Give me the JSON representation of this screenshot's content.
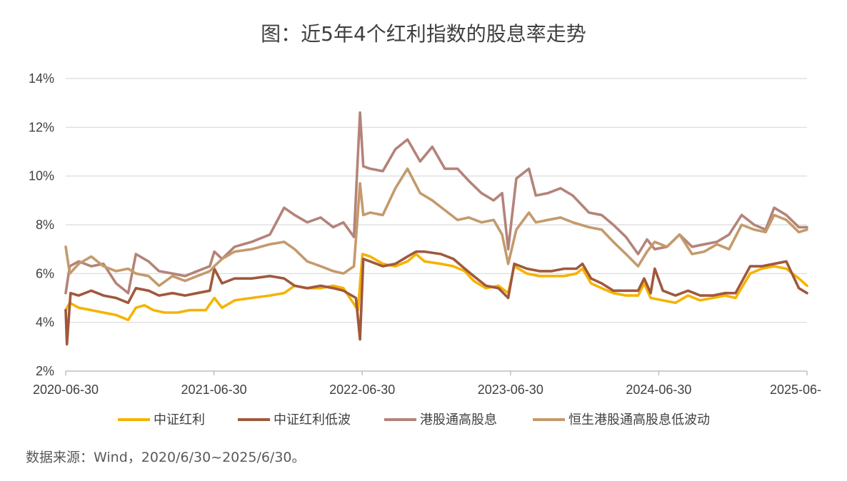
{
  "title": "图：近5年4个红利指数的股息率走势",
  "source": "数据来源：Wind，2020/6/30~2025/6/30。",
  "chart_data": {
    "type": "line",
    "ylim": [
      2,
      14
    ],
    "yticks": [
      2,
      4,
      6,
      8,
      10,
      12,
      14
    ],
    "ytick_labels": [
      "2%",
      "4%",
      "6%",
      "8%",
      "10%",
      "12%",
      "14%"
    ],
    "xlim": [
      "2020-06-30",
      "2025-06-30"
    ],
    "xtick_labels": [
      "2020-06-30",
      "2021-06-30",
      "2022-06-30",
      "2023-06-30",
      "2024-06-30",
      "2025-06-"
    ],
    "grid": "horizontal",
    "legend_position": "bottom",
    "series": [
      {
        "name": "中证红利",
        "color": "#f5b301",
        "points": [
          [
            "2020-06-30",
            4.5
          ],
          [
            "2020-07-10",
            4.8
          ],
          [
            "2020-08-01",
            4.6
          ],
          [
            "2020-09-01",
            4.5
          ],
          [
            "2020-10-01",
            4.4
          ],
          [
            "2020-11-01",
            4.3
          ],
          [
            "2020-12-01",
            4.1
          ],
          [
            "2020-12-20",
            4.6
          ],
          [
            "2021-01-10",
            4.7
          ],
          [
            "2021-02-01",
            4.5
          ],
          [
            "2021-03-01",
            4.4
          ],
          [
            "2021-04-01",
            4.4
          ],
          [
            "2021-05-01",
            4.5
          ],
          [
            "2021-06-10",
            4.5
          ],
          [
            "2021-07-01",
            5.0
          ],
          [
            "2021-07-20",
            4.6
          ],
          [
            "2021-08-20",
            4.9
          ],
          [
            "2021-10-01",
            5.0
          ],
          [
            "2021-11-15",
            5.1
          ],
          [
            "2021-12-20",
            5.2
          ],
          [
            "2022-01-15",
            5.5
          ],
          [
            "2022-02-15",
            5.4
          ],
          [
            "2022-03-20",
            5.4
          ],
          [
            "2022-04-20",
            5.5
          ],
          [
            "2022-05-15",
            5.4
          ],
          [
            "2022-06-20",
            4.5
          ],
          [
            "2022-07-01",
            6.8
          ],
          [
            "2022-07-20",
            6.7
          ],
          [
            "2022-08-20",
            6.4
          ],
          [
            "2022-09-20",
            6.3
          ],
          [
            "2022-10-20",
            6.5
          ],
          [
            "2022-11-10",
            6.8
          ],
          [
            "2022-12-01",
            6.5
          ],
          [
            "2023-01-10",
            6.4
          ],
          [
            "2023-02-10",
            6.3
          ],
          [
            "2023-03-10",
            6.1
          ],
          [
            "2023-04-01",
            5.7
          ],
          [
            "2023-05-01",
            5.4
          ],
          [
            "2023-06-01",
            5.5
          ],
          [
            "2023-06-25",
            5.2
          ],
          [
            "2023-07-10",
            6.3
          ],
          [
            "2023-08-10",
            6.0
          ],
          [
            "2023-09-10",
            5.9
          ],
          [
            "2023-10-10",
            5.9
          ],
          [
            "2023-11-10",
            5.9
          ],
          [
            "2023-12-10",
            6.0
          ],
          [
            "2023-12-25",
            6.2
          ],
          [
            "2024-01-15",
            5.6
          ],
          [
            "2024-02-10",
            5.4
          ],
          [
            "2024-03-10",
            5.2
          ],
          [
            "2024-04-10",
            5.1
          ],
          [
            "2024-05-10",
            5.1
          ],
          [
            "2024-05-25",
            5.6
          ],
          [
            "2024-06-10",
            5.0
          ],
          [
            "2024-07-10",
            4.9
          ],
          [
            "2024-08-10",
            4.8
          ],
          [
            "2024-09-10",
            5.1
          ],
          [
            "2024-10-10",
            4.9
          ],
          [
            "2024-11-10",
            5.0
          ],
          [
            "2024-12-10",
            5.1
          ],
          [
            "2025-01-05",
            5.0
          ],
          [
            "2025-02-10",
            6.0
          ],
          [
            "2025-03-10",
            6.2
          ],
          [
            "2025-04-10",
            6.3
          ],
          [
            "2025-05-10",
            6.2
          ],
          [
            "2025-06-10",
            5.8
          ],
          [
            "2025-06-30",
            5.5
          ]
        ]
      },
      {
        "name": "中证红利低波",
        "color": "#a0583c",
        "points": [
          [
            "2020-06-30",
            4.5
          ],
          [
            "2020-07-03",
            3.1
          ],
          [
            "2020-07-12",
            5.2
          ],
          [
            "2020-08-01",
            5.1
          ],
          [
            "2020-09-01",
            5.3
          ],
          [
            "2020-10-01",
            5.1
          ],
          [
            "2020-11-01",
            5.0
          ],
          [
            "2020-12-01",
            4.8
          ],
          [
            "2020-12-20",
            5.4
          ],
          [
            "2021-01-20",
            5.3
          ],
          [
            "2021-02-15",
            5.1
          ],
          [
            "2021-03-20",
            5.2
          ],
          [
            "2021-04-20",
            5.1
          ],
          [
            "2021-05-20",
            5.2
          ],
          [
            "2021-06-20",
            5.3
          ],
          [
            "2021-07-01",
            6.2
          ],
          [
            "2021-07-20",
            5.6
          ],
          [
            "2021-08-20",
            5.8
          ],
          [
            "2021-10-01",
            5.8
          ],
          [
            "2021-11-15",
            5.9
          ],
          [
            "2021-12-20",
            5.8
          ],
          [
            "2022-01-15",
            5.5
          ],
          [
            "2022-02-15",
            5.4
          ],
          [
            "2022-03-20",
            5.5
          ],
          [
            "2022-04-20",
            5.4
          ],
          [
            "2022-05-15",
            5.3
          ],
          [
            "2022-06-15",
            5.0
          ],
          [
            "2022-06-25",
            3.3
          ],
          [
            "2022-07-03",
            6.6
          ],
          [
            "2022-07-20",
            6.5
          ],
          [
            "2022-08-20",
            6.3
          ],
          [
            "2022-09-20",
            6.4
          ],
          [
            "2022-10-20",
            6.7
          ],
          [
            "2022-11-10",
            6.9
          ],
          [
            "2022-12-01",
            6.9
          ],
          [
            "2023-01-10",
            6.8
          ],
          [
            "2023-02-10",
            6.6
          ],
          [
            "2023-03-10",
            6.2
          ],
          [
            "2023-04-01",
            5.9
          ],
          [
            "2023-05-01",
            5.5
          ],
          [
            "2023-06-01",
            5.4
          ],
          [
            "2023-06-25",
            5.0
          ],
          [
            "2023-07-10",
            6.4
          ],
          [
            "2023-08-10",
            6.2
          ],
          [
            "2023-09-10",
            6.1
          ],
          [
            "2023-10-10",
            6.1
          ],
          [
            "2023-11-10",
            6.2
          ],
          [
            "2023-12-10",
            6.2
          ],
          [
            "2023-12-25",
            6.4
          ],
          [
            "2024-01-15",
            5.8
          ],
          [
            "2024-02-10",
            5.6
          ],
          [
            "2024-03-10",
            5.3
          ],
          [
            "2024-04-10",
            5.3
          ],
          [
            "2024-05-10",
            5.3
          ],
          [
            "2024-05-25",
            5.8
          ],
          [
            "2024-06-10",
            5.2
          ],
          [
            "2024-06-20",
            6.2
          ],
          [
            "2024-07-10",
            5.3
          ],
          [
            "2024-08-10",
            5.1
          ],
          [
            "2024-09-10",
            5.3
          ],
          [
            "2024-10-10",
            5.1
          ],
          [
            "2024-11-10",
            5.1
          ],
          [
            "2024-12-10",
            5.2
          ],
          [
            "2025-01-05",
            5.2
          ],
          [
            "2025-02-10",
            6.3
          ],
          [
            "2025-03-10",
            6.3
          ],
          [
            "2025-04-10",
            6.4
          ],
          [
            "2025-05-10",
            6.5
          ],
          [
            "2025-06-10",
            5.4
          ],
          [
            "2025-06-30",
            5.2
          ]
        ]
      },
      {
        "name": "港股通高股息",
        "color": "#b48379",
        "points": [
          [
            "2020-06-30",
            5.2
          ],
          [
            "2020-07-10",
            6.3
          ],
          [
            "2020-08-01",
            6.5
          ],
          [
            "2020-09-01",
            6.3
          ],
          [
            "2020-10-01",
            6.4
          ],
          [
            "2020-11-01",
            5.6
          ],
          [
            "2020-12-01",
            5.2
          ],
          [
            "2020-12-20",
            6.8
          ],
          [
            "2021-01-20",
            6.5
          ],
          [
            "2021-02-15",
            6.1
          ],
          [
            "2021-03-20",
            6.0
          ],
          [
            "2021-04-20",
            5.9
          ],
          [
            "2021-05-20",
            6.1
          ],
          [
            "2021-06-20",
            6.3
          ],
          [
            "2021-07-01",
            6.9
          ],
          [
            "2021-07-20",
            6.6
          ],
          [
            "2021-08-20",
            7.1
          ],
          [
            "2021-10-01",
            7.3
          ],
          [
            "2021-11-15",
            7.6
          ],
          [
            "2021-12-20",
            8.7
          ],
          [
            "2022-01-15",
            8.4
          ],
          [
            "2022-02-15",
            8.1
          ],
          [
            "2022-03-20",
            8.3
          ],
          [
            "2022-04-20",
            7.9
          ],
          [
            "2022-05-15",
            8.1
          ],
          [
            "2022-06-10",
            7.5
          ],
          [
            "2022-06-25",
            12.6
          ],
          [
            "2022-07-03",
            10.4
          ],
          [
            "2022-07-20",
            10.3
          ],
          [
            "2022-08-20",
            10.2
          ],
          [
            "2022-09-20",
            11.1
          ],
          [
            "2022-10-20",
            11.5
          ],
          [
            "2022-11-20",
            10.6
          ],
          [
            "2022-12-20",
            11.2
          ],
          [
            "2023-01-20",
            10.3
          ],
          [
            "2023-02-20",
            10.3
          ],
          [
            "2023-03-20",
            9.8
          ],
          [
            "2023-04-20",
            9.3
          ],
          [
            "2023-05-20",
            9.0
          ],
          [
            "2023-06-10",
            9.3
          ],
          [
            "2023-06-25",
            7.0
          ],
          [
            "2023-07-15",
            9.9
          ],
          [
            "2023-08-15",
            10.3
          ],
          [
            "2023-09-01",
            9.2
          ],
          [
            "2023-10-01",
            9.3
          ],
          [
            "2023-11-01",
            9.5
          ],
          [
            "2023-12-01",
            9.2
          ],
          [
            "2024-01-10",
            8.5
          ],
          [
            "2024-02-10",
            8.4
          ],
          [
            "2024-03-10",
            8.0
          ],
          [
            "2024-04-10",
            7.5
          ],
          [
            "2024-05-10",
            6.8
          ],
          [
            "2024-06-01",
            7.4
          ],
          [
            "2024-06-20",
            7.0
          ],
          [
            "2024-07-20",
            7.1
          ],
          [
            "2024-08-20",
            7.6
          ],
          [
            "2024-09-20",
            7.1
          ],
          [
            "2024-10-20",
            7.2
          ],
          [
            "2024-11-20",
            7.3
          ],
          [
            "2024-12-20",
            7.6
          ],
          [
            "2025-01-20",
            8.4
          ],
          [
            "2025-02-20",
            8.0
          ],
          [
            "2025-03-20",
            7.8
          ],
          [
            "2025-04-10",
            8.7
          ],
          [
            "2025-05-10",
            8.4
          ],
          [
            "2025-06-10",
            7.9
          ],
          [
            "2025-06-30",
            7.9
          ]
        ]
      },
      {
        "name": "恒生港股通高股息低波动",
        "color": "#c49a6c",
        "points": [
          [
            "2020-06-30",
            7.1
          ],
          [
            "2020-07-10",
            6.0
          ],
          [
            "2020-08-01",
            6.4
          ],
          [
            "2020-09-01",
            6.7
          ],
          [
            "2020-10-01",
            6.3
          ],
          [
            "2020-11-01",
            6.1
          ],
          [
            "2020-12-01",
            6.2
          ],
          [
            "2020-12-20",
            6.0
          ],
          [
            "2021-01-20",
            5.9
          ],
          [
            "2021-02-15",
            5.5
          ],
          [
            "2021-03-20",
            5.9
          ],
          [
            "2021-04-20",
            5.7
          ],
          [
            "2021-05-20",
            5.9
          ],
          [
            "2021-06-20",
            6.1
          ],
          [
            "2021-07-01",
            6.3
          ],
          [
            "2021-07-20",
            6.6
          ],
          [
            "2021-08-20",
            6.9
          ],
          [
            "2021-10-01",
            7.0
          ],
          [
            "2021-11-15",
            7.2
          ],
          [
            "2021-12-20",
            7.3
          ],
          [
            "2022-01-15",
            7.0
          ],
          [
            "2022-02-15",
            6.5
          ],
          [
            "2022-03-20",
            6.3
          ],
          [
            "2022-04-20",
            6.1
          ],
          [
            "2022-05-15",
            6.0
          ],
          [
            "2022-06-10",
            6.3
          ],
          [
            "2022-06-25",
            9.7
          ],
          [
            "2022-07-03",
            8.4
          ],
          [
            "2022-07-20",
            8.5
          ],
          [
            "2022-08-20",
            8.4
          ],
          [
            "2022-09-20",
            9.5
          ],
          [
            "2022-10-20",
            10.3
          ],
          [
            "2022-11-20",
            9.3
          ],
          [
            "2022-12-20",
            9.0
          ],
          [
            "2023-01-20",
            8.6
          ],
          [
            "2023-02-20",
            8.2
          ],
          [
            "2023-03-20",
            8.3
          ],
          [
            "2023-04-20",
            8.1
          ],
          [
            "2023-05-20",
            8.2
          ],
          [
            "2023-06-10",
            7.6
          ],
          [
            "2023-06-25",
            6.4
          ],
          [
            "2023-07-15",
            7.8
          ],
          [
            "2023-08-15",
            8.5
          ],
          [
            "2023-09-01",
            8.1
          ],
          [
            "2023-10-01",
            8.2
          ],
          [
            "2023-11-01",
            8.3
          ],
          [
            "2023-12-01",
            8.1
          ],
          [
            "2024-01-10",
            7.9
          ],
          [
            "2024-02-10",
            7.8
          ],
          [
            "2024-03-10",
            7.3
          ],
          [
            "2024-04-10",
            6.8
          ],
          [
            "2024-05-10",
            6.3
          ],
          [
            "2024-06-01",
            6.9
          ],
          [
            "2024-06-20",
            7.3
          ],
          [
            "2024-07-20",
            7.1
          ],
          [
            "2024-08-20",
            7.6
          ],
          [
            "2024-09-20",
            6.8
          ],
          [
            "2024-10-20",
            6.9
          ],
          [
            "2024-11-20",
            7.2
          ],
          [
            "2024-12-20",
            7.0
          ],
          [
            "2025-01-20",
            8.0
          ],
          [
            "2025-02-20",
            7.8
          ],
          [
            "2025-03-20",
            7.7
          ],
          [
            "2025-04-10",
            8.4
          ],
          [
            "2025-05-10",
            8.2
          ],
          [
            "2025-06-10",
            7.7
          ],
          [
            "2025-06-30",
            7.8
          ]
        ]
      }
    ]
  }
}
